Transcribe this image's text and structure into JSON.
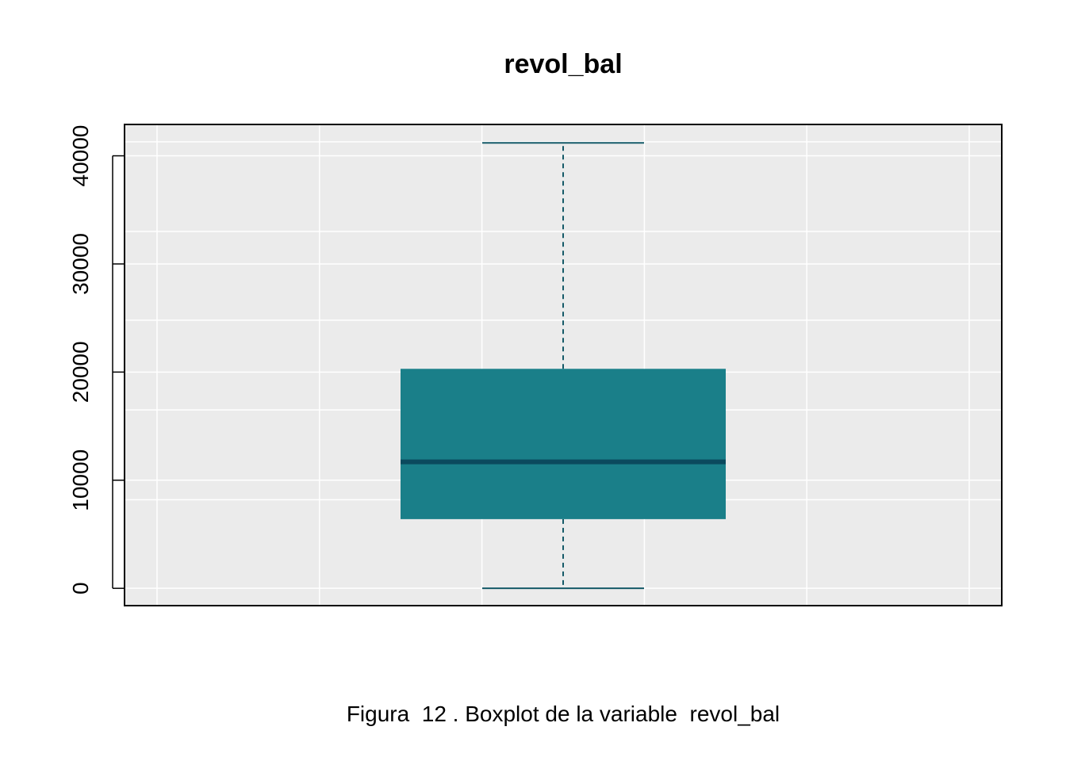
{
  "chart_data": {
    "type": "boxplot",
    "title": "revol_bal",
    "xlabel": "",
    "ylabel": "",
    "ylim": [
      -1600,
      42900
    ],
    "yticks": [
      0,
      10000,
      20000,
      30000,
      40000
    ],
    "y_tick_labels": [
      "0",
      "10000",
      "20000",
      "30000",
      "40000"
    ],
    "y_minor_gridlines": [
      -1650,
      8200,
      16500,
      24800,
      33000,
      41300
    ],
    "grid": true,
    "box": {
      "min": 0,
      "q1": 6400,
      "median": 11700,
      "q3": 20300,
      "max": 41200
    },
    "colors": {
      "panel_background": "#EBEBEB",
      "grid": "#FFFFFF",
      "box_fill": "#1A7F89",
      "median_line": "#0B4A5E",
      "whisker": "#155A68",
      "border": "#000000"
    }
  },
  "caption": "Figura  12 . Boxplot de la variable  revol_bal"
}
